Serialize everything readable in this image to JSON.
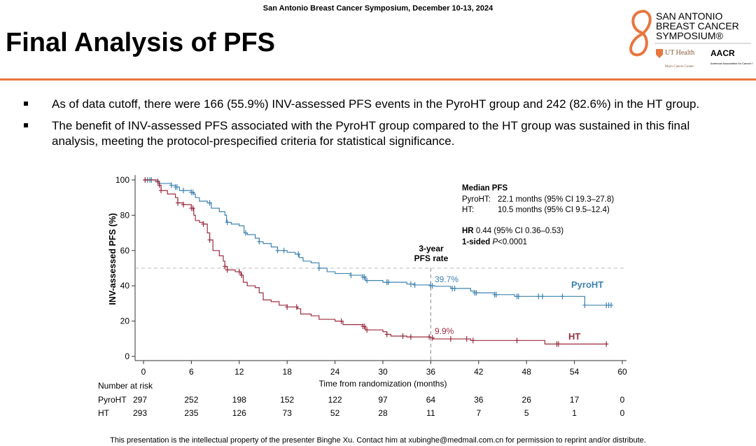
{
  "header": {
    "conference": "San Antonio Breast Cancer Symposium, December 10-13, 2024",
    "title": "Final Analysis of PFS",
    "logo": {
      "name": "SAN ANTONIO BREAST CANCER SYMPOSIUM®",
      "partners": [
        "UT Health San Antonio Mays Cancer Center",
        "AACR American Association for Cancer Research"
      ]
    }
  },
  "bullets": [
    "As of data cutoff, there were 166 (55.9%) INV-assessed PFS events in the PyroHT group and 242 (82.6%) in the HT group.",
    "The benefit of INV-assessed PFS associated with the PyroHT group compared to the HT group was sustained in this final analysis, meeting the protocol-prespecified criteria for statistical significance."
  ],
  "footer": "This presentation is the intellectual property of the presenter Binghe Xu. Contact him at xubinghe@medmail.com.cn for permission to reprint and/or distribute.",
  "chart_data": {
    "type": "line",
    "subtype": "kaplan-meier step",
    "xlabel": "Time from randomization (months)",
    "ylabel": "INV-assessed PFS (%)",
    "xlim": [
      0,
      60
    ],
    "ylim": [
      0,
      100
    ],
    "xticks": [
      0,
      6,
      12,
      18,
      24,
      30,
      36,
      42,
      48,
      54,
      60
    ],
    "yticks": [
      0,
      20,
      40,
      60,
      80,
      100
    ],
    "reference_line_y": 50,
    "reference_line_x": 36,
    "annotation_3yr": [
      "3-year",
      "PFS rate"
    ],
    "stats": {
      "heading": "Median PFS",
      "pyro_label": "PyroHT:",
      "pyro": "22.1 months (95% CI 19.3–27.8)",
      "ht_label": "HT:",
      "ht": "10.5 months (95% CI 9.5–12.4)",
      "hr_bold": "HR",
      "hr": " 0.44 (95% CI 0.36–0.53)",
      "p_bold": "1-sided ",
      "p_italic": "P",
      "p": "<0.0001"
    },
    "series": [
      {
        "name": "PyroHT",
        "color": "#3f83b0",
        "rate_label": "39.7%",
        "points": [
          [
            0,
            100
          ],
          [
            1.5,
            99
          ],
          [
            2,
            98
          ],
          [
            3.5,
            97
          ],
          [
            4,
            96
          ],
          [
            4.5,
            94
          ],
          [
            6,
            93
          ],
          [
            6.3,
            92
          ],
          [
            6.5,
            90
          ],
          [
            7,
            88
          ],
          [
            8,
            87
          ],
          [
            8.5,
            84
          ],
          [
            9.5,
            82
          ],
          [
            10.2,
            80
          ],
          [
            10.4,
            76
          ],
          [
            11,
            75
          ],
          [
            12,
            74
          ],
          [
            12.6,
            70
          ],
          [
            13,
            69
          ],
          [
            14,
            67
          ],
          [
            14.5,
            65
          ],
          [
            15,
            64
          ],
          [
            16,
            62
          ],
          [
            16.8,
            60
          ],
          [
            18,
            59
          ],
          [
            19,
            58
          ],
          [
            19.5,
            56
          ],
          [
            20,
            54
          ],
          [
            21,
            53
          ],
          [
            22,
            50
          ],
          [
            23,
            48
          ],
          [
            24,
            47
          ],
          [
            26,
            46
          ],
          [
            27.5,
            45
          ],
          [
            27.8,
            43
          ],
          [
            30,
            42
          ],
          [
            33,
            41
          ],
          [
            34,
            40.5
          ],
          [
            36,
            40
          ],
          [
            36.5,
            39.7
          ],
          [
            38.5,
            38.5
          ],
          [
            41,
            37
          ],
          [
            41.5,
            36
          ],
          [
            44,
            35
          ],
          [
            46.5,
            34
          ],
          [
            55.3,
            29
          ],
          [
            58.5,
            29
          ]
        ],
        "censor": [
          0.5,
          0.8,
          1,
          1.8,
          2,
          3.5,
          4,
          4.2,
          5,
          6,
          6.2,
          8.3,
          10.5,
          12.8,
          14.5,
          16.8,
          17.6,
          19.4,
          22,
          26,
          27.5,
          27.7,
          28,
          30.5,
          30.7,
          33.5,
          34,
          36,
          36.2,
          38.7,
          39,
          41.5,
          41.7,
          44,
          44.2,
          46.8,
          47,
          49.5,
          50,
          52.5,
          55.3,
          58,
          58.3,
          58.6
        ],
        "at_risk": [
          297,
          252,
          198,
          152,
          122,
          97,
          64,
          36,
          26,
          17,
          0
        ]
      },
      {
        "name": "HT",
        "color": "#9b2c3e",
        "rate_label": "9.9%",
        "points": [
          [
            0,
            100
          ],
          [
            1.8,
            99
          ],
          [
            2,
            97
          ],
          [
            2.2,
            94
          ],
          [
            3,
            92
          ],
          [
            4,
            90
          ],
          [
            4.3,
            87
          ],
          [
            5,
            86
          ],
          [
            6,
            84
          ],
          [
            6.3,
            80
          ],
          [
            6.5,
            77
          ],
          [
            7,
            76
          ],
          [
            7.5,
            75
          ],
          [
            8,
            70
          ],
          [
            8.3,
            66
          ],
          [
            8.7,
            60
          ],
          [
            9.5,
            57
          ],
          [
            10,
            54
          ],
          [
            10.2,
            51
          ],
          [
            10.5,
            49
          ],
          [
            11.5,
            48
          ],
          [
            12.2,
            46
          ],
          [
            12.5,
            42
          ],
          [
            13,
            40
          ],
          [
            14,
            39
          ],
          [
            14.5,
            36
          ],
          [
            15,
            32
          ],
          [
            16,
            31
          ],
          [
            17,
            29
          ],
          [
            18,
            28
          ],
          [
            19.3,
            27
          ],
          [
            19.7,
            24
          ],
          [
            21,
            23
          ],
          [
            22,
            21
          ],
          [
            24,
            20
          ],
          [
            25,
            18
          ],
          [
            27.5,
            17
          ],
          [
            27.8,
            15
          ],
          [
            30,
            14
          ],
          [
            30.5,
            12.5
          ],
          [
            31,
            11.5
          ],
          [
            33,
            11
          ],
          [
            36,
            10.5
          ],
          [
            36.3,
            9.9
          ],
          [
            41,
            9
          ],
          [
            50,
            9
          ],
          [
            50.3,
            7
          ],
          [
            58,
            7
          ]
        ],
        "censor": [
          0.2,
          1.8,
          2,
          2.2,
          4.3,
          5,
          6,
          6.2,
          7.5,
          8.3,
          10.2,
          10.5,
          12,
          12.3,
          18,
          19.2,
          24.8,
          27.5,
          27.7,
          28,
          30.5,
          32.5,
          33.5,
          35.8,
          36.2,
          38.5,
          40.5,
          41.3,
          46.8,
          51.8,
          52,
          58
        ],
        "at_risk": [
          293,
          235,
          126,
          73,
          52,
          28,
          11,
          7,
          5,
          1,
          0
        ]
      }
    ],
    "at_risk_title": "Number at risk"
  }
}
